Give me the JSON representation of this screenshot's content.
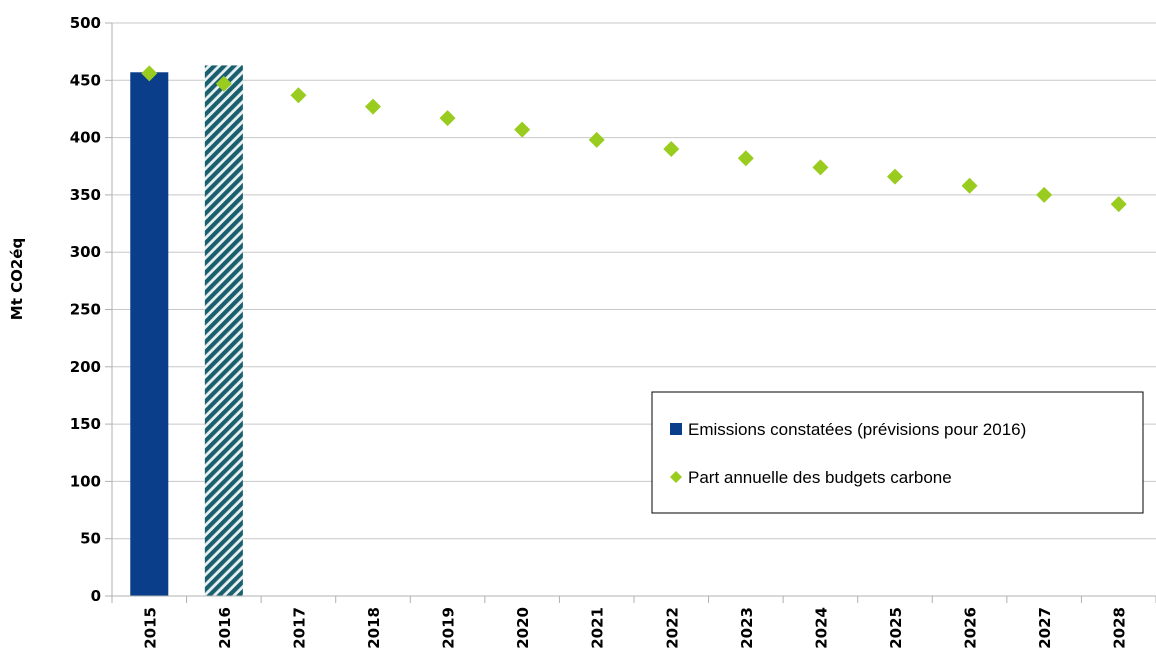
{
  "chart_data": {
    "type": "bar",
    "title": "",
    "xlabel": "",
    "ylabel": "Mt CO2éq",
    "ylim": [
      0,
      500
    ],
    "yticks": [
      0,
      50,
      100,
      150,
      200,
      250,
      300,
      350,
      400,
      450,
      500
    ],
    "categories": [
      "2015",
      "2016",
      "2017",
      "2018",
      "2019",
      "2020",
      "2021",
      "2022",
      "2023",
      "2024",
      "2025",
      "2026",
      "2027",
      "2028"
    ],
    "grid": true,
    "legend_position": "right",
    "series": [
      {
        "name": "Emissions constatées (prévisions pour 2016)",
        "kind": "bar",
        "color": "#0a3d8a",
        "hatched_categories": [
          "2016"
        ],
        "hatch_color": "#1a5f6e",
        "values": [
          457,
          463,
          null,
          null,
          null,
          null,
          null,
          null,
          null,
          null,
          null,
          null,
          null,
          null
        ]
      },
      {
        "name": "Part annuelle des budgets carbone",
        "kind": "scatter",
        "marker": "diamond",
        "color": "#99cc1f",
        "values": [
          456,
          447,
          437,
          427,
          417,
          407,
          398,
          390,
          382,
          374,
          366,
          358,
          350,
          342
        ]
      }
    ]
  }
}
